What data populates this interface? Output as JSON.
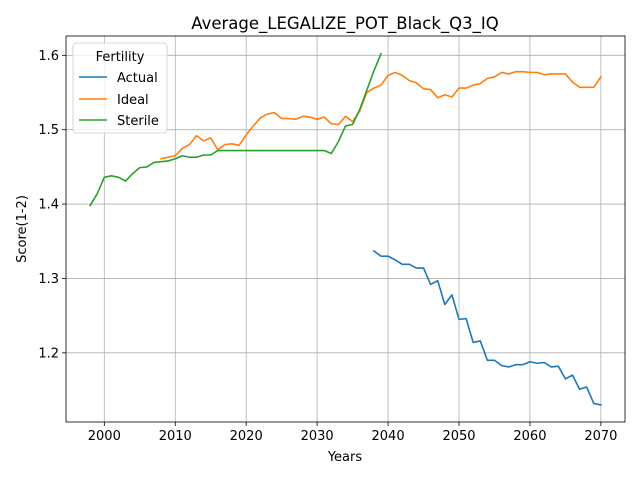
{
  "chart_data": {
    "type": "line",
    "title": "Average_LEGALIZE_POT_Black_Q3_IQ",
    "xlabel": "Years",
    "ylabel": "Score(1-2)",
    "xlim": [
      1994.6,
      2073.4
    ],
    "ylim": [
      1.107,
      1.626
    ],
    "x_ticks": [
      2000,
      2010,
      2020,
      2030,
      2040,
      2050,
      2060,
      2070
    ],
    "y_ticks": [
      1.2,
      1.3,
      1.4,
      1.5,
      1.6
    ],
    "x_tick_labels": [
      "2000",
      "2010",
      "2020",
      "2030",
      "2040",
      "2050",
      "2060",
      "2070"
    ],
    "y_tick_labels": [
      "1.2",
      "1.3",
      "1.4",
      "1.5",
      "1.6"
    ],
    "grid": true,
    "legend": {
      "title": "Fertility",
      "placement": "upper-left"
    },
    "series": [
      {
        "name": "Actual",
        "color": "#1f77b4",
        "x": [
          2038,
          2039,
          2040,
          2041,
          2042,
          2043,
          2044,
          2045,
          2046,
          2047,
          2048,
          2049,
          2050,
          2051,
          2052,
          2053,
          2054,
          2055,
          2056,
          2057,
          2058,
          2059,
          2060,
          2061,
          2062,
          2063,
          2064,
          2065,
          2066,
          2067,
          2068,
          2069,
          2070
        ],
        "y": [
          1.337,
          1.33,
          1.33,
          1.325,
          1.319,
          1.319,
          1.314,
          1.314,
          1.292,
          1.297,
          1.265,
          1.278,
          1.245,
          1.246,
          1.214,
          1.216,
          1.19,
          1.19,
          1.183,
          1.181,
          1.184,
          1.184,
          1.188,
          1.186,
          1.187,
          1.181,
          1.182,
          1.165,
          1.17,
          1.151,
          1.154,
          1.132,
          1.13
        ]
      },
      {
        "name": "Ideal",
        "color": "#ff7f0e",
        "x": [
          2008,
          2009,
          2010,
          2011,
          2012,
          2013,
          2014,
          2015,
          2016,
          2017,
          2018,
          2019,
          2020,
          2021,
          2022,
          2023,
          2024,
          2025,
          2026,
          2027,
          2028,
          2029,
          2030,
          2031,
          2032,
          2033,
          2034,
          2035,
          2036,
          2037,
          2038,
          2039,
          2040,
          2041,
          2042,
          2043,
          2044,
          2045,
          2046,
          2047,
          2048,
          2049,
          2050,
          2051,
          2052,
          2053,
          2054,
          2055,
          2056,
          2057,
          2058,
          2059,
          2060,
          2061,
          2062,
          2063,
          2064,
          2065,
          2066,
          2067,
          2068,
          2069,
          2070
        ],
        "y": [
          1.461,
          1.463,
          1.465,
          1.475,
          1.48,
          1.492,
          1.485,
          1.489,
          1.473,
          1.48,
          1.481,
          1.479,
          1.493,
          1.505,
          1.516,
          1.521,
          1.523,
          1.515,
          1.515,
          1.514,
          1.518,
          1.517,
          1.514,
          1.517,
          1.508,
          1.507,
          1.518,
          1.511,
          1.525,
          1.55,
          1.556,
          1.56,
          1.573,
          1.577,
          1.573,
          1.566,
          1.563,
          1.555,
          1.554,
          1.543,
          1.547,
          1.544,
          1.556,
          1.556,
          1.56,
          1.562,
          1.569,
          1.571,
          1.577,
          1.575,
          1.578,
          1.578,
          1.577,
          1.577,
          1.574,
          1.575,
          1.575,
          1.575,
          1.564,
          1.557,
          1.557,
          1.557,
          1.571
        ]
      },
      {
        "name": "Sterile",
        "color": "#2ca02c",
        "x": [
          1998,
          1999,
          2000,
          2001,
          2002,
          2003,
          2004,
          2005,
          2006,
          2007,
          2008,
          2009,
          2010,
          2011,
          2012,
          2013,
          2014,
          2015,
          2016,
          2017,
          2018,
          2019,
          2020,
          2021,
          2022,
          2023,
          2024,
          2025,
          2026,
          2027,
          2028,
          2029,
          2030,
          2031,
          2032,
          2033,
          2034,
          2035,
          2036,
          2037,
          2038,
          2039
        ],
        "y": [
          1.398,
          1.414,
          1.436,
          1.438,
          1.436,
          1.431,
          1.441,
          1.449,
          1.45,
          1.456,
          1.457,
          1.458,
          1.461,
          1.465,
          1.463,
          1.463,
          1.466,
          1.466,
          1.472,
          1.472,
          1.472,
          1.472,
          1.472,
          1.472,
          1.472,
          1.472,
          1.472,
          1.472,
          1.472,
          1.472,
          1.472,
          1.472,
          1.472,
          1.472,
          1.468,
          1.484,
          1.505,
          1.507,
          1.527,
          1.553,
          1.579,
          1.602
        ]
      }
    ]
  }
}
